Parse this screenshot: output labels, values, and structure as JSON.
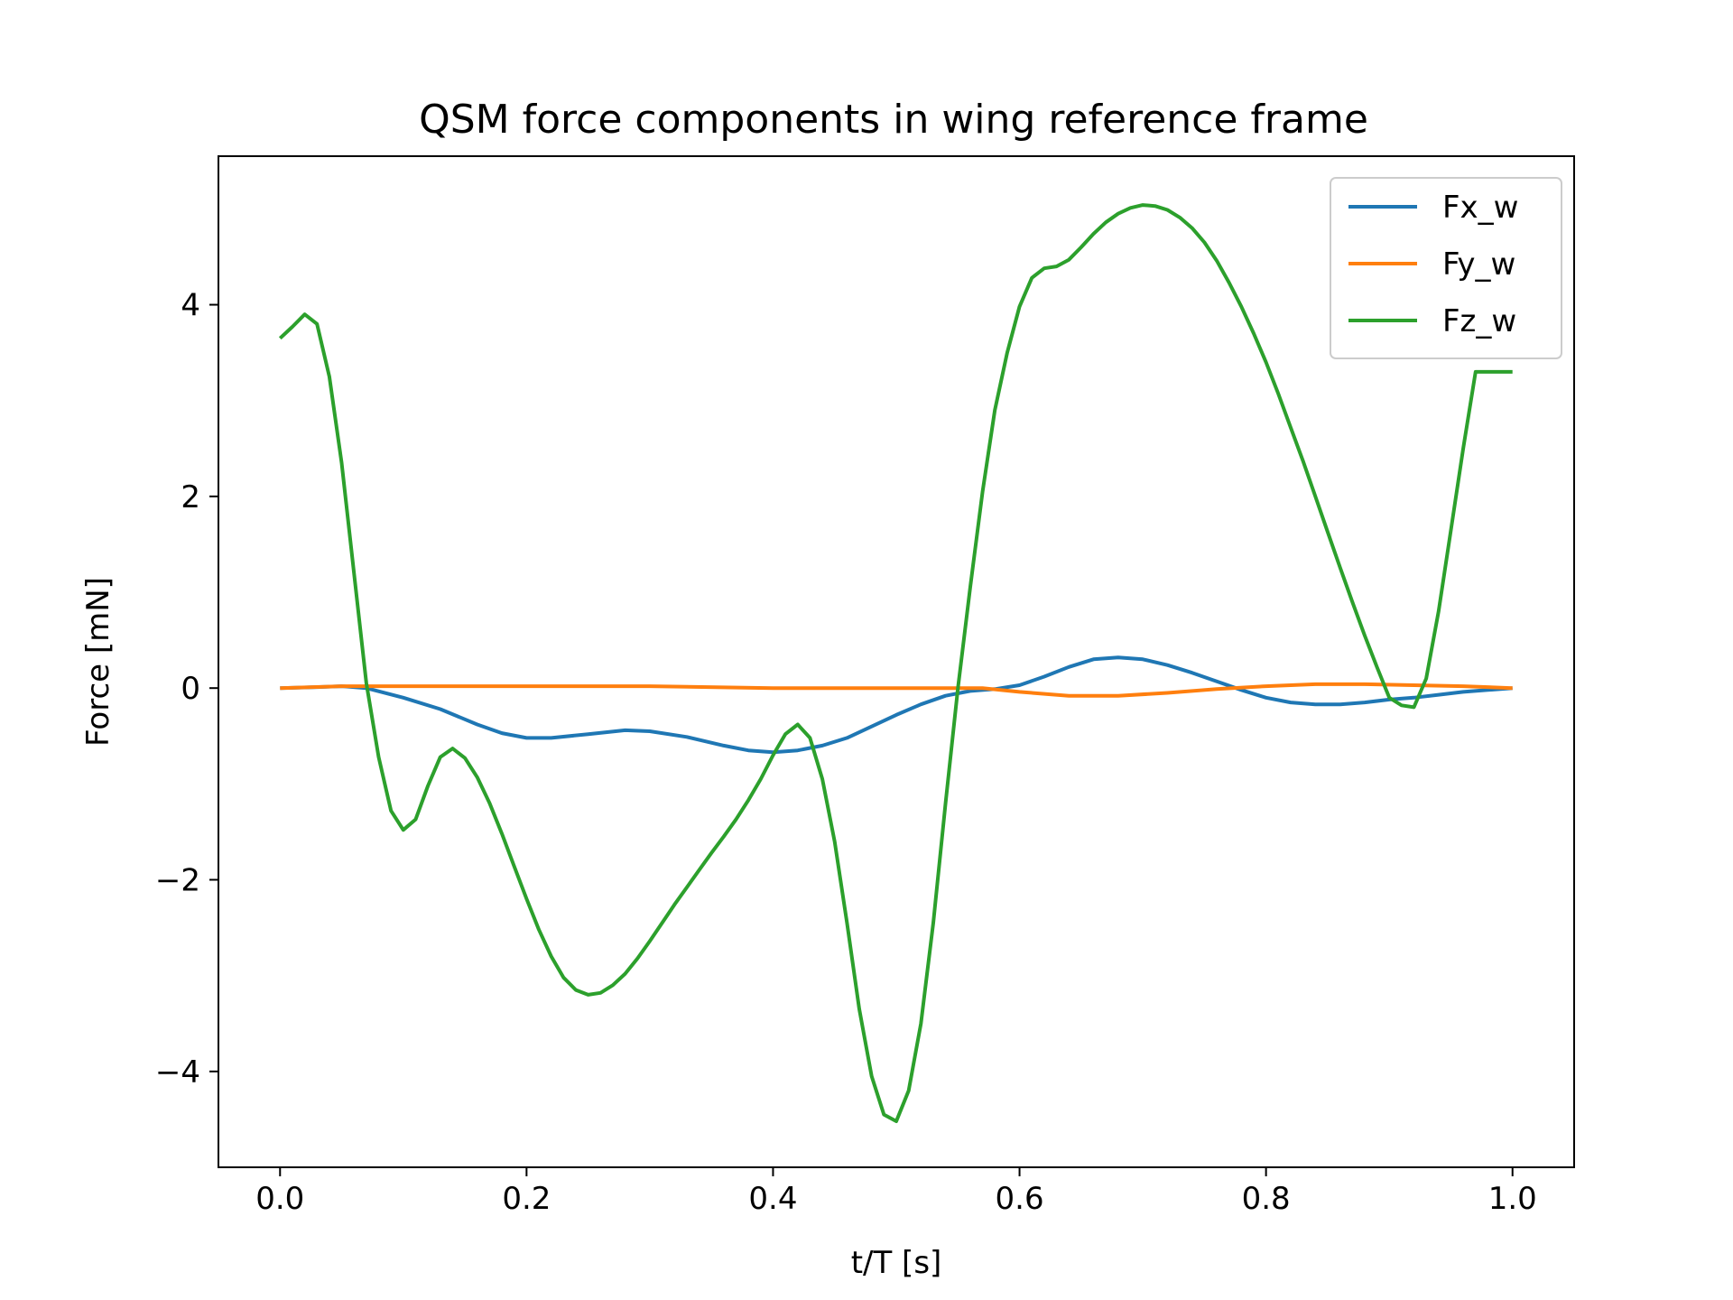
{
  "chart_data": {
    "type": "line",
    "title": "QSM force components in wing reference frame",
    "xlabel": "t/T [s]",
    "ylabel": "Force [mN]",
    "xlim": [
      -0.05,
      1.05
    ],
    "ylim": [
      -5.0,
      5.55
    ],
    "xticks": [
      0.0,
      0.2,
      0.4,
      0.6,
      0.8,
      1.0
    ],
    "xtick_labels": [
      "0.0",
      "0.2",
      "0.4",
      "0.6",
      "0.8",
      "1.0"
    ],
    "yticks": [
      -4,
      -2,
      0,
      2,
      4
    ],
    "ytick_labels": [
      "−4",
      "−2",
      "0",
      "2",
      "4"
    ],
    "grid": false,
    "legend_position": "top-right",
    "series": [
      {
        "name": "Fx_w",
        "color": "#1f77b4",
        "x": [
          0.0,
          0.03,
          0.05,
          0.07,
          0.1,
          0.13,
          0.16,
          0.18,
          0.2,
          0.22,
          0.25,
          0.28,
          0.3,
          0.33,
          0.36,
          0.38,
          0.4,
          0.42,
          0.44,
          0.46,
          0.48,
          0.5,
          0.52,
          0.54,
          0.56,
          0.58,
          0.6,
          0.62,
          0.64,
          0.66,
          0.68,
          0.7,
          0.72,
          0.74,
          0.76,
          0.78,
          0.8,
          0.82,
          0.84,
          0.86,
          0.88,
          0.9,
          0.92,
          0.94,
          0.96,
          0.98,
          1.0
        ],
        "y": [
          0.0,
          0.01,
          0.02,
          0.0,
          -0.1,
          -0.22,
          -0.38,
          -0.47,
          -0.52,
          -0.52,
          -0.48,
          -0.44,
          -0.45,
          -0.51,
          -0.6,
          -0.65,
          -0.67,
          -0.65,
          -0.6,
          -0.52,
          -0.4,
          -0.28,
          -0.17,
          -0.08,
          -0.03,
          -0.01,
          0.03,
          0.12,
          0.22,
          0.3,
          0.32,
          0.3,
          0.24,
          0.16,
          0.07,
          -0.02,
          -0.1,
          -0.15,
          -0.17,
          -0.17,
          -0.15,
          -0.12,
          -0.1,
          -0.07,
          -0.04,
          -0.02,
          0.0
        ]
      },
      {
        "name": "Fy_w",
        "color": "#ff7f0e",
        "x": [
          0.0,
          0.05,
          0.1,
          0.2,
          0.3,
          0.4,
          0.5,
          0.57,
          0.6,
          0.64,
          0.68,
          0.72,
          0.76,
          0.8,
          0.84,
          0.88,
          0.92,
          0.96,
          1.0
        ],
        "y": [
          0.0,
          0.02,
          0.02,
          0.02,
          0.02,
          0.0,
          0.0,
          0.0,
          -0.04,
          -0.08,
          -0.08,
          -0.05,
          -0.01,
          0.02,
          0.04,
          0.04,
          0.03,
          0.02,
          0.0
        ],
        "y_note_hidden": ""
      },
      {
        "name": "Fz_w",
        "color": "#2ca02c",
        "x": [
          0.0,
          0.01,
          0.02,
          0.03,
          0.04,
          0.05,
          0.06,
          0.07,
          0.08,
          0.09,
          0.1,
          0.11,
          0.12,
          0.13,
          0.14,
          0.15,
          0.16,
          0.17,
          0.18,
          0.19,
          0.2,
          0.21,
          0.22,
          0.23,
          0.24,
          0.25,
          0.26,
          0.27,
          0.28,
          0.29,
          0.3,
          0.31,
          0.32,
          0.33,
          0.34,
          0.35,
          0.36,
          0.37,
          0.38,
          0.39,
          0.4,
          0.41,
          0.42,
          0.43,
          0.44,
          0.45,
          0.46,
          0.47,
          0.48,
          0.49,
          0.5,
          0.51,
          0.52,
          0.53,
          0.54,
          0.55,
          0.56,
          0.57,
          0.58,
          0.59,
          0.6,
          0.61,
          0.62,
          0.63,
          0.64,
          0.65,
          0.66,
          0.67,
          0.68,
          0.69,
          0.7,
          0.71,
          0.72,
          0.73,
          0.74,
          0.75,
          0.76,
          0.77,
          0.78,
          0.79,
          0.8,
          0.81,
          0.82,
          0.83,
          0.84,
          0.85,
          0.86,
          0.87,
          0.88,
          0.89,
          0.9,
          0.91,
          0.92,
          0.93,
          0.94,
          0.95,
          0.96,
          0.97,
          0.98,
          0.99,
          1.0
        ],
        "y": [
          3.65,
          3.77,
          3.9,
          3.8,
          3.25,
          2.35,
          1.2,
          0.05,
          -0.72,
          -1.28,
          -1.48,
          -1.37,
          -1.02,
          -0.72,
          -0.63,
          -0.73,
          -0.93,
          -1.2,
          -1.52,
          -1.86,
          -2.2,
          -2.52,
          -2.8,
          -3.02,
          -3.15,
          -3.2,
          -3.18,
          -3.1,
          -2.98,
          -2.82,
          -2.64,
          -2.45,
          -2.26,
          -2.08,
          -1.9,
          -1.72,
          -1.55,
          -1.37,
          -1.17,
          -0.95,
          -0.7,
          -0.48,
          -0.38,
          -0.52,
          -0.95,
          -1.6,
          -2.45,
          -3.35,
          -4.05,
          -4.45,
          -4.52,
          -4.2,
          -3.5,
          -2.45,
          -1.2,
          0.0,
          1.05,
          2.05,
          2.9,
          3.5,
          3.98,
          4.28,
          4.38,
          4.4,
          4.47,
          4.6,
          4.74,
          4.86,
          4.95,
          5.01,
          5.04,
          5.03,
          4.99,
          4.91,
          4.8,
          4.65,
          4.46,
          4.23,
          3.98,
          3.7,
          3.4,
          3.07,
          2.72,
          2.37,
          2.0,
          1.63,
          1.26,
          0.9,
          0.55,
          0.22,
          -0.1,
          -0.18,
          -0.2,
          0.1,
          0.8,
          1.65,
          2.5,
          3.3,
          3.3,
          3.3,
          3.3
        ]
      }
    ]
  }
}
